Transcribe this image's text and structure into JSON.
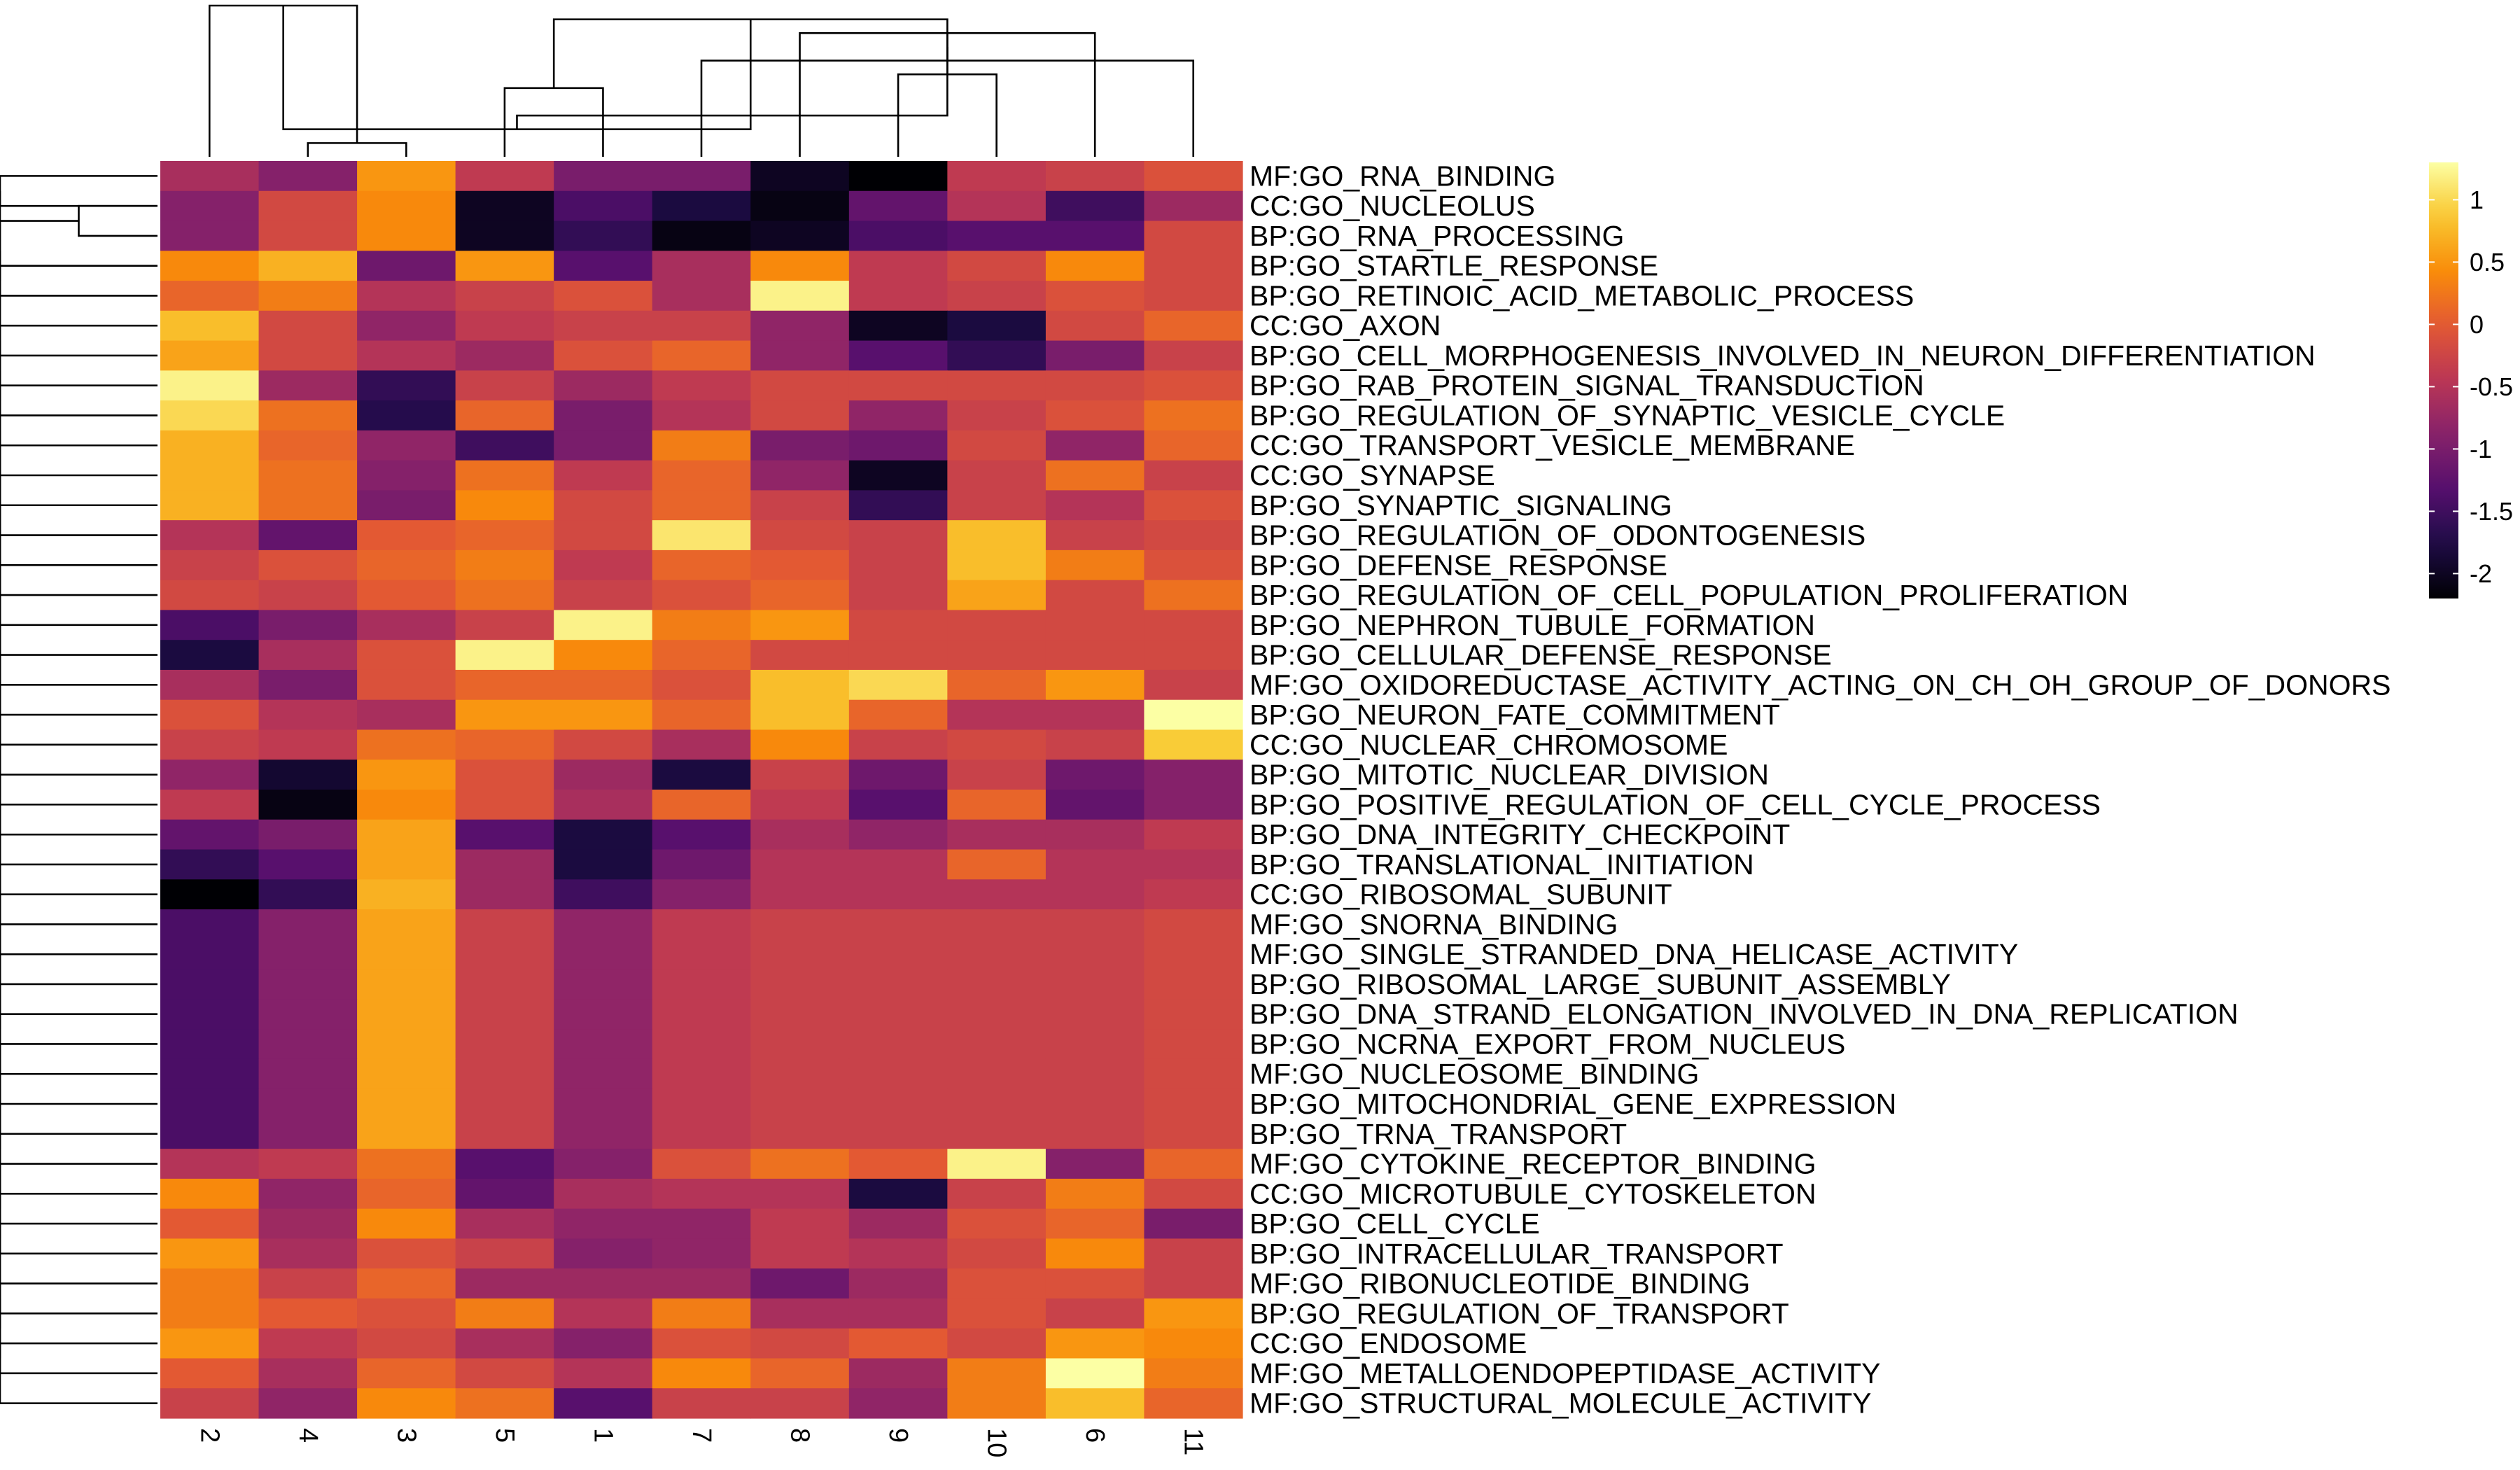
{
  "chart_data": {
    "type": "heatmap",
    "colormap": "inferno",
    "color_range": [
      -2.2,
      1.3
    ],
    "legend_placement": "right",
    "legend_ticks": [
      {
        "value": 1,
        "label": "1"
      },
      {
        "value": 0.5,
        "label": "0.5"
      },
      {
        "value": 0,
        "label": "0"
      },
      {
        "value": -0.5,
        "label": "-0.5"
      },
      {
        "value": -1,
        "label": "-1"
      },
      {
        "value": -1.5,
        "label": "-1.5"
      },
      {
        "value": -2,
        "label": "-2"
      }
    ],
    "columns": [
      "2",
      "4",
      "3",
      "5",
      "1",
      "7",
      "8",
      "9",
      "10",
      "6",
      "11"
    ],
    "rows": [
      "MF:GO_RNA_BINDING",
      "CC:GO_NUCLEOLUS",
      "BP:GO_RNA_PROCESSING",
      "BP:GO_STARTLE_RESPONSE",
      "BP:GO_RETINOIC_ACID_METABOLIC_PROCESS",
      "CC:GO_AXON",
      "BP:GO_CELL_MORPHOGENESIS_INVOLVED_IN_NEURON_DIFFERENTIATION",
      "BP:GO_RAB_PROTEIN_SIGNAL_TRANSDUCTION",
      "BP:GO_REGULATION_OF_SYNAPTIC_VESICLE_CYCLE",
      "CC:GO_TRANSPORT_VESICLE_MEMBRANE",
      "CC:GO_SYNAPSE",
      "BP:GO_SYNAPTIC_SIGNALING",
      "BP:GO_REGULATION_OF_ODONTOGENESIS",
      "BP:GO_DEFENSE_RESPONSE",
      "BP:GO_REGULATION_OF_CELL_POPULATION_PROLIFERATION",
      "BP:GO_NEPHRON_TUBULE_FORMATION",
      "BP:GO_CELLULAR_DEFENSE_RESPONSE",
      "MF:GO_OXIDOREDUCTASE_ACTIVITY_ACTING_ON_CH_OH_GROUP_OF_DONORS",
      "BP:GO_NEURON_FATE_COMMITMENT",
      "CC:GO_NUCLEAR_CHROMOSOME",
      "BP:GO_MITOTIC_NUCLEAR_DIVISION",
      "BP:GO_POSITIVE_REGULATION_OF_CELL_CYCLE_PROCESS",
      "BP:GO_DNA_INTEGRITY_CHECKPOINT",
      "BP:GO_TRANSLATIONAL_INITIATION",
      "CC:GO_RIBOSOMAL_SUBUNIT",
      "MF:GO_SNORNA_BINDING",
      "MF:GO_SINGLE_STRANDED_DNA_HELICASE_ACTIVITY",
      "BP:GO_RIBOSOMAL_LARGE_SUBUNIT_ASSEMBLY",
      "BP:GO_DNA_STRAND_ELONGATION_INVOLVED_IN_DNA_REPLICATION",
      "BP:GO_NCRNA_EXPORT_FROM_NUCLEUS",
      "MF:GO_NUCLEOSOME_BINDING",
      "BP:GO_MITOCHONDRIAL_GENE_EXPRESSION",
      "BP:GO_TRNA_TRANSPORT",
      "MF:GO_CYTOKINE_RECEPTOR_BINDING",
      "CC:GO_MICROTUBULE_CYTOSKELETON",
      "BP:GO_CELL_CYCLE",
      "BP:GO_INTRACELLULAR_TRANSPORT",
      "MF:GO_RIBONUCLEOTIDE_BINDING",
      "BP:GO_REGULATION_OF_TRANSPORT",
      "CC:GO_ENDOSOME",
      "MF:GO_METALLOENDOPEPTIDASE_ACTIVITY",
      "MF:GO_STRUCTURAL_MOLECULE_ACTIVITY"
    ],
    "values": [
      [
        -0.6,
        -0.9,
        0.5,
        -0.4,
        -1.0,
        -1.0,
        -2.0,
        -2.2,
        -0.4,
        -0.3,
        -0.1
      ],
      [
        -0.9,
        -0.2,
        0.4,
        -2.0,
        -1.4,
        -1.8,
        -2.1,
        -1.2,
        -0.5,
        -1.5,
        -0.7
      ],
      [
        -0.9,
        -0.2,
        0.4,
        -2.0,
        -1.6,
        -2.1,
        -2.0,
        -1.4,
        -1.3,
        -1.3,
        -0.2
      ],
      [
        0.4,
        0.7,
        -1.1,
        0.5,
        -1.3,
        -0.6,
        0.4,
        -0.4,
        -0.2,
        0.4,
        -0.2
      ],
      [
        0.1,
        0.3,
        -0.5,
        -0.3,
        -0.1,
        -0.6,
        1.2,
        -0.4,
        -0.3,
        -0.1,
        -0.2
      ],
      [
        0.8,
        -0.2,
        -0.8,
        -0.4,
        -0.3,
        -0.3,
        -0.8,
        -2.0,
        -1.8,
        -0.2,
        0.1
      ],
      [
        0.6,
        -0.2,
        -0.5,
        -0.7,
        -0.1,
        0.1,
        -0.8,
        -1.3,
        -1.6,
        -1.0,
        -0.3
      ],
      [
        1.2,
        -0.7,
        -1.6,
        -0.3,
        -0.7,
        -0.4,
        -0.2,
        -0.2,
        -0.2,
        -0.2,
        -0.1
      ],
      [
        1.0,
        0.2,
        -1.7,
        0.1,
        -1.0,
        -0.5,
        -0.2,
        -0.8,
        -0.3,
        -0.1,
        0.2
      ],
      [
        0.7,
        0.1,
        -0.8,
        -1.5,
        -1.0,
        0.3,
        -1.0,
        -1.1,
        -0.2,
        -0.8,
        0.1
      ],
      [
        0.7,
        0.2,
        -0.9,
        0.2,
        -0.4,
        0.1,
        -0.8,
        -2.0,
        -0.3,
        0.2,
        -0.3
      ],
      [
        0.7,
        0.2,
        -1.0,
        0.4,
        -0.2,
        0.1,
        -0.3,
        -1.6,
        -0.3,
        -0.5,
        -0.1
      ],
      [
        -0.5,
        -1.2,
        0.0,
        0.1,
        -0.2,
        1.1,
        -0.2,
        -0.3,
        0.8,
        -0.3,
        -0.2
      ],
      [
        -0.3,
        -0.1,
        0.1,
        0.3,
        -0.4,
        0.1,
        0.0,
        -0.3,
        0.8,
        0.3,
        -0.1
      ],
      [
        -0.2,
        -0.3,
        0.0,
        0.2,
        -0.3,
        -0.1,
        0.1,
        -0.3,
        0.6,
        -0.2,
        0.2
      ],
      [
        -1.4,
        -1.0,
        -0.6,
        -0.3,
        1.2,
        0.3,
        0.5,
        -0.2,
        -0.2,
        -0.2,
        -0.2
      ],
      [
        -1.8,
        -0.6,
        -0.1,
        1.2,
        0.4,
        0.1,
        -0.2,
        -0.2,
        -0.2,
        -0.2,
        -0.2
      ],
      [
        -0.6,
        -1.0,
        -0.1,
        0.1,
        0.1,
        -0.1,
        0.8,
        1.0,
        0.1,
        0.5,
        -0.3
      ],
      [
        -0.1,
        -0.5,
        -0.6,
        0.5,
        0.5,
        0.1,
        0.8,
        0.1,
        -0.5,
        -0.5,
        1.3
      ],
      [
        -0.3,
        -0.4,
        0.2,
        0.1,
        -0.2,
        -0.6,
        0.4,
        -0.3,
        -0.2,
        -0.3,
        0.9
      ],
      [
        -0.8,
        -1.9,
        0.5,
        -0.1,
        -0.7,
        -1.8,
        -0.3,
        -1.1,
        -0.3,
        -1.1,
        -0.9
      ],
      [
        -0.4,
        -2.1,
        0.4,
        -0.1,
        -0.6,
        0.1,
        -0.4,
        -1.3,
        0.1,
        -1.2,
        -0.9
      ],
      [
        -1.2,
        -1.0,
        0.6,
        -1.3,
        -1.8,
        -1.3,
        -0.6,
        -0.8,
        -0.6,
        -0.6,
        -0.4
      ],
      [
        -1.6,
        -1.3,
        0.6,
        -0.7,
        -1.8,
        -1.1,
        -0.5,
        -0.5,
        0.1,
        -0.5,
        -0.5
      ],
      [
        -2.2,
        -1.6,
        0.7,
        -0.7,
        -1.5,
        -0.9,
        -0.5,
        -0.5,
        -0.5,
        -0.5,
        -0.4
      ],
      [
        -1.4,
        -0.9,
        0.6,
        -0.3,
        -0.8,
        -0.4,
        -0.3,
        -0.3,
        -0.3,
        -0.3,
        -0.2
      ],
      [
        -1.4,
        -0.9,
        0.6,
        -0.3,
        -0.8,
        -0.4,
        -0.3,
        -0.3,
        -0.3,
        -0.3,
        -0.2
      ],
      [
        -1.4,
        -0.9,
        0.6,
        -0.3,
        -0.8,
        -0.4,
        -0.3,
        -0.3,
        -0.3,
        -0.3,
        -0.2
      ],
      [
        -1.4,
        -0.9,
        0.6,
        -0.3,
        -0.8,
        -0.4,
        -0.3,
        -0.3,
        -0.3,
        -0.3,
        -0.2
      ],
      [
        -1.4,
        -0.9,
        0.6,
        -0.3,
        -0.8,
        -0.4,
        -0.3,
        -0.3,
        -0.3,
        -0.3,
        -0.2
      ],
      [
        -1.4,
        -0.9,
        0.6,
        -0.3,
        -0.8,
        -0.4,
        -0.3,
        -0.3,
        -0.3,
        -0.3,
        -0.2
      ],
      [
        -1.4,
        -0.9,
        0.6,
        -0.3,
        -0.8,
        -0.4,
        -0.3,
        -0.3,
        -0.3,
        -0.3,
        -0.2
      ],
      [
        -1.4,
        -0.9,
        0.6,
        -0.3,
        -0.8,
        -0.4,
        -0.3,
        -0.3,
        -0.3,
        -0.3,
        -0.2
      ],
      [
        -0.5,
        -0.4,
        0.2,
        -1.3,
        -0.9,
        -0.1,
        0.2,
        0.0,
        1.2,
        -0.9,
        0.1
      ],
      [
        0.4,
        -0.8,
        0.1,
        -1.2,
        -0.6,
        -0.5,
        -0.5,
        -1.8,
        -0.3,
        0.3,
        -0.2
      ],
      [
        0.0,
        -0.7,
        0.4,
        -0.6,
        -0.8,
        -0.8,
        -0.4,
        -0.7,
        -0.1,
        0.1,
        -1.0
      ],
      [
        0.5,
        -0.6,
        -0.1,
        -0.3,
        -0.9,
        -0.8,
        -0.4,
        -0.5,
        -0.2,
        0.4,
        -0.3
      ],
      [
        0.3,
        -0.3,
        0.1,
        -0.7,
        -0.7,
        -0.7,
        -1.1,
        -0.7,
        -0.1,
        -0.1,
        -0.3
      ],
      [
        0.3,
        0.0,
        -0.1,
        0.3,
        -0.5,
        0.3,
        -0.6,
        -0.6,
        -0.1,
        -0.3,
        0.5
      ],
      [
        0.5,
        -0.4,
        -0.2,
        -0.6,
        -0.9,
        -0.1,
        -0.2,
        0.0,
        -0.2,
        0.5,
        0.4
      ],
      [
        0.0,
        -0.6,
        0.1,
        -0.2,
        -0.5,
        0.4,
        0.1,
        -0.7,
        0.3,
        1.3,
        0.3
      ],
      [
        -0.3,
        -0.8,
        0.4,
        0.2,
        -1.3,
        -0.3,
        -0.3,
        -0.8,
        0.3,
        0.8,
        0.1
      ]
    ],
    "column_dendrogram": [
      [
        1,
        2,
        1
      ],
      [
        3,
        4,
        5
      ],
      [
        7,
        8,
        6
      ],
      [
        6,
        9,
        9
      ],
      [
        5,
        10,
        7
      ],
      [
        0,
        11,
        11
      ],
      [
        12,
        13,
        10
      ],
      [
        14,
        15,
        8
      ],
      [
        16,
        17,
        2
      ],
      [
        18,
        19,
        3
      ]
    ],
    "row_dendrogram": [
      [
        0,
        1,
        2
      ],
      [
        1,
        2,
        1
      ],
      [
        3,
        4,
        2
      ],
      [
        5,
        6,
        2
      ],
      [
        7,
        8,
        2
      ],
      [
        9,
        10,
        2
      ],
      [
        11,
        12,
        2
      ],
      [
        13,
        14,
        2
      ],
      [
        15,
        16,
        2
      ],
      [
        17,
        18,
        2
      ],
      [
        19,
        20,
        2
      ],
      [
        21,
        22,
        2
      ],
      [
        23,
        24,
        2
      ],
      [
        25,
        26,
        2
      ],
      [
        27,
        28,
        2
      ],
      [
        29,
        30,
        2
      ],
      [
        31,
        32,
        2
      ],
      [
        33,
        34,
        2
      ],
      [
        35,
        36,
        2
      ],
      [
        37,
        38,
        2
      ],
      [
        39,
        40,
        2
      ],
      [
        41,
        42,
        2
      ],
      [
        43,
        44,
        2
      ],
      [
        45,
        46,
        2
      ],
      [
        47,
        48,
        2
      ],
      [
        49,
        50,
        2
      ],
      [
        51,
        52,
        2
      ],
      [
        53,
        54,
        2
      ],
      [
        55,
        56,
        2
      ],
      [
        57,
        58,
        2
      ],
      [
        59,
        60,
        2
      ],
      [
        61,
        62,
        2
      ],
      [
        63,
        64,
        2
      ],
      [
        65,
        66,
        2
      ],
      [
        67,
        68,
        2
      ],
      [
        69,
        70,
        2
      ],
      [
        71,
        72,
        2
      ],
      [
        73,
        74,
        2
      ],
      [
        75,
        76,
        2
      ],
      [
        77,
        78,
        2
      ],
      [
        79,
        80,
        2
      ],
      [
        81,
        82,
        2
      ]
    ]
  }
}
